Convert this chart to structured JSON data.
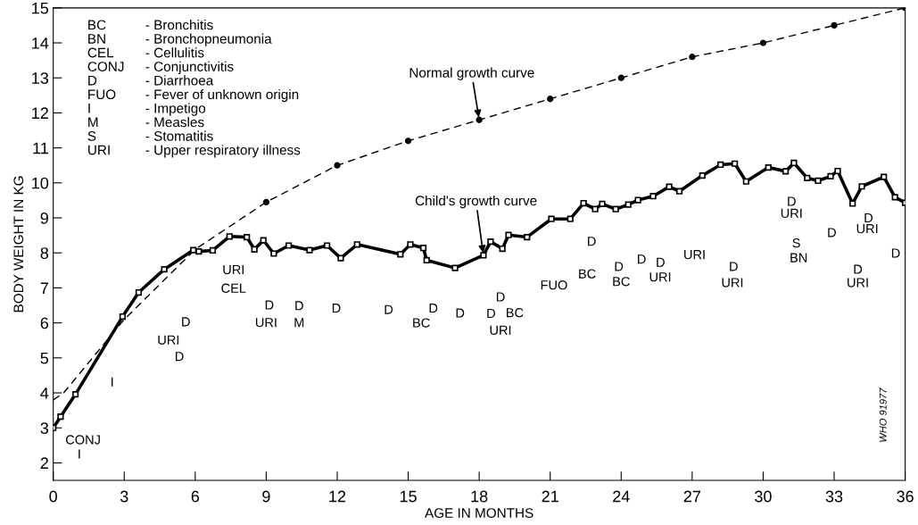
{
  "chart_data": {
    "type": "line",
    "xlabel": "AGE IN MONTHS",
    "ylabel": "BODY WEIGHT IN KG",
    "xlim": [
      0,
      36
    ],
    "xticks": [
      0,
      3,
      6,
      9,
      12,
      15,
      18,
      21,
      24,
      27,
      30,
      33,
      36
    ],
    "ylim": [
      1.5,
      15
    ],
    "yticks": [
      2,
      3,
      4,
      5,
      6,
      7,
      8,
      9,
      10,
      11,
      12,
      13,
      14,
      15
    ],
    "grid": false,
    "legend": false,
    "series": [
      {
        "color": "#000000",
        "line_style": "dashed",
        "marker": "none",
        "x": [
          0,
          0.44,
          3,
          6,
          9,
          12,
          15,
          18,
          21,
          24,
          27,
          30,
          33,
          36
        ],
        "values": [
          3.8,
          4.0,
          6.1,
          8.1,
          9.45,
          10.5,
          11.2,
          11.8,
          12.4,
          13.0,
          13.6,
          14.0,
          14.5,
          15.0
        ]
      },
      {
        "type": "scatter",
        "color": "#000000",
        "marker": "circle",
        "x": [
          9,
          12,
          15,
          18,
          21,
          24,
          27,
          30,
          33,
          36
        ],
        "values": [
          9.45,
          10.5,
          11.2,
          11.8,
          12.4,
          13.0,
          13.6,
          14.0,
          14.5,
          15.0
        ]
      },
      {
        "color": "#000000",
        "line_style": "solid",
        "marker": "square",
        "x": [
          0,
          0.31,
          0.94,
          2.93,
          3.61,
          4.69,
          5.92,
          6.15,
          6.74,
          7.45,
          8.18,
          8.5,
          8.88,
          9.32,
          9.95,
          10.83,
          11.57,
          12.15,
          12.84,
          14.67,
          15.09,
          15.64,
          15.78,
          16.98,
          18.18,
          18.48,
          18.98,
          19.24,
          20.02,
          21.05,
          21.85,
          22.41,
          22.9,
          23.2,
          23.77,
          24.3,
          24.71,
          25.35,
          26.03,
          26.46,
          27.43,
          28.2,
          28.8,
          29.28,
          30.22,
          30.95,
          31.3,
          31.86,
          32.32,
          32.85,
          33.15,
          33.78,
          34.17,
          35.1,
          35.57,
          36
        ],
        "values": [
          3.0,
          3.32,
          3.96,
          6.18,
          6.87,
          7.53,
          8.08,
          8.04,
          8.07,
          8.47,
          8.45,
          8.1,
          8.36,
          7.98,
          8.21,
          8.08,
          8.21,
          7.85,
          8.24,
          7.96,
          8.24,
          8.14,
          7.79,
          7.57,
          7.93,
          8.32,
          8.12,
          8.51,
          8.45,
          8.97,
          8.97,
          9.42,
          9.25,
          9.4,
          9.25,
          9.38,
          9.51,
          9.62,
          9.89,
          9.76,
          10.21,
          10.52,
          10.55,
          10.04,
          10.44,
          10.33,
          10.57,
          10.14,
          10.06,
          10.19,
          10.34,
          9.41,
          9.9,
          10.17,
          9.59,
          9.43
        ]
      }
    ],
    "annotations": [
      "BC\nBN\nCEL\nCONJ\nD\nFUO\nI\nM\nS\nURI",
      "- Bronchitis\n- Bronchopneumonia\n- Cellulitis\n- Conjunctivitis\n- Diarrhoea\n- Fever of unknown origin\n- Impetigo\n- Measles\n- Stomatitis\n- Upper respiratory illness",
      "WHO 91977",
      {
        "text": "Normal growth curve",
        "x": 18,
        "y": 11.8
      },
      {
        "text": "Child's growth curve",
        "x": 18.18,
        "y": 7.93
      },
      "CONJ",
      "I",
      "I",
      "URI",
      "D",
      "D",
      "URI",
      "CEL",
      "D",
      "URI",
      "D",
      "M",
      "D",
      "D",
      "D",
      "BC",
      "D",
      "D",
      "D",
      "BC",
      "URI",
      "FUO",
      "D",
      "BC",
      "D",
      "BC",
      "D",
      "D",
      "URI",
      "URI",
      "D",
      "URI",
      "D",
      "URI",
      "S",
      "BN",
      "D",
      "D",
      "URI",
      "D",
      "URI",
      "D"
    ]
  }
}
